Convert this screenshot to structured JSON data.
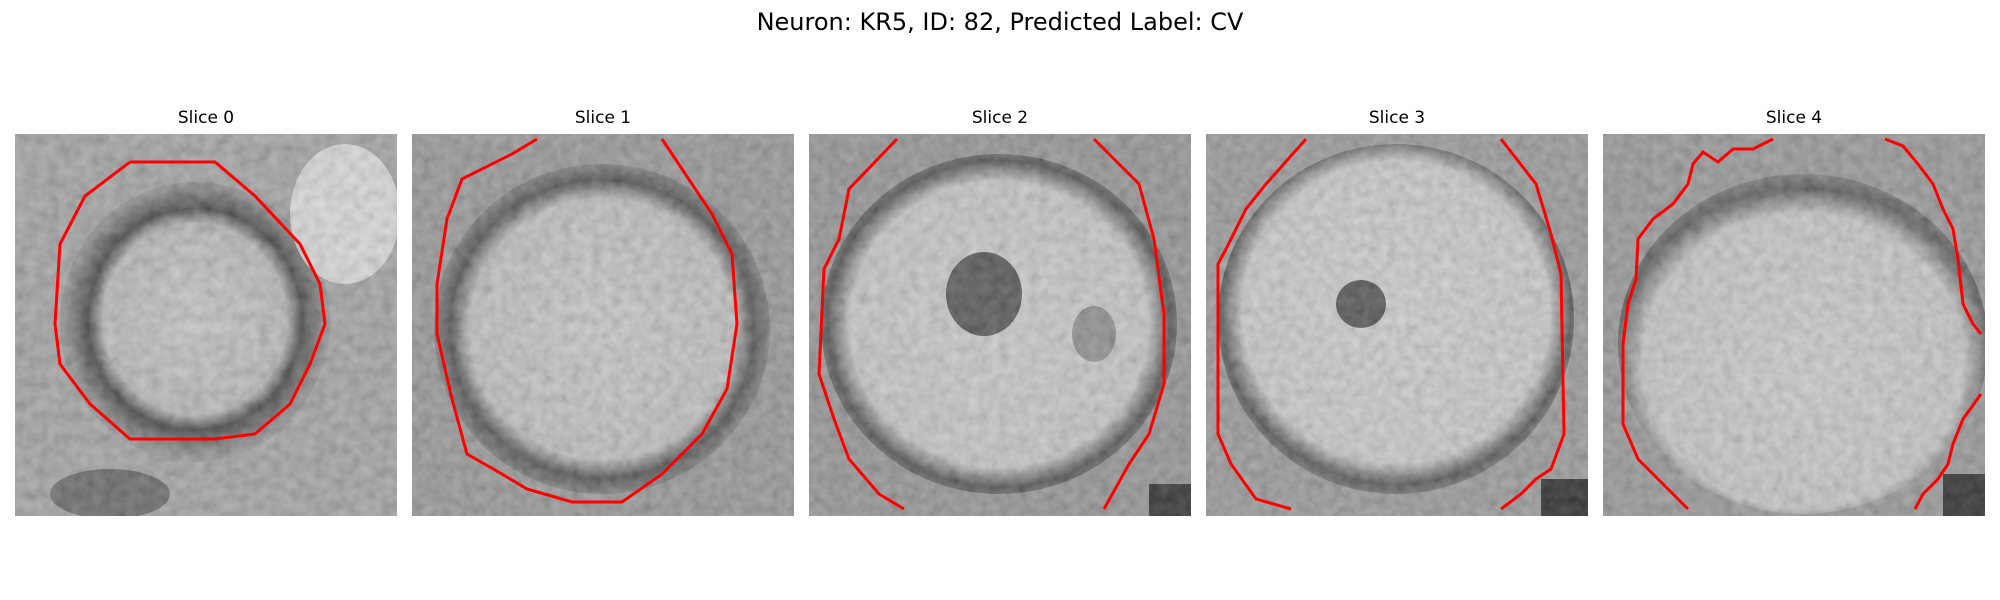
{
  "figure": {
    "title": "Neuron: KR5, ID: 82, Predicted Label: CV",
    "contour_color": "#ff0000"
  },
  "slices": [
    {
      "title": "Slice 0"
    },
    {
      "title": "Slice 1"
    },
    {
      "title": "Slice 2"
    },
    {
      "title": "Slice 3"
    },
    {
      "title": "Slice 4"
    }
  ]
}
